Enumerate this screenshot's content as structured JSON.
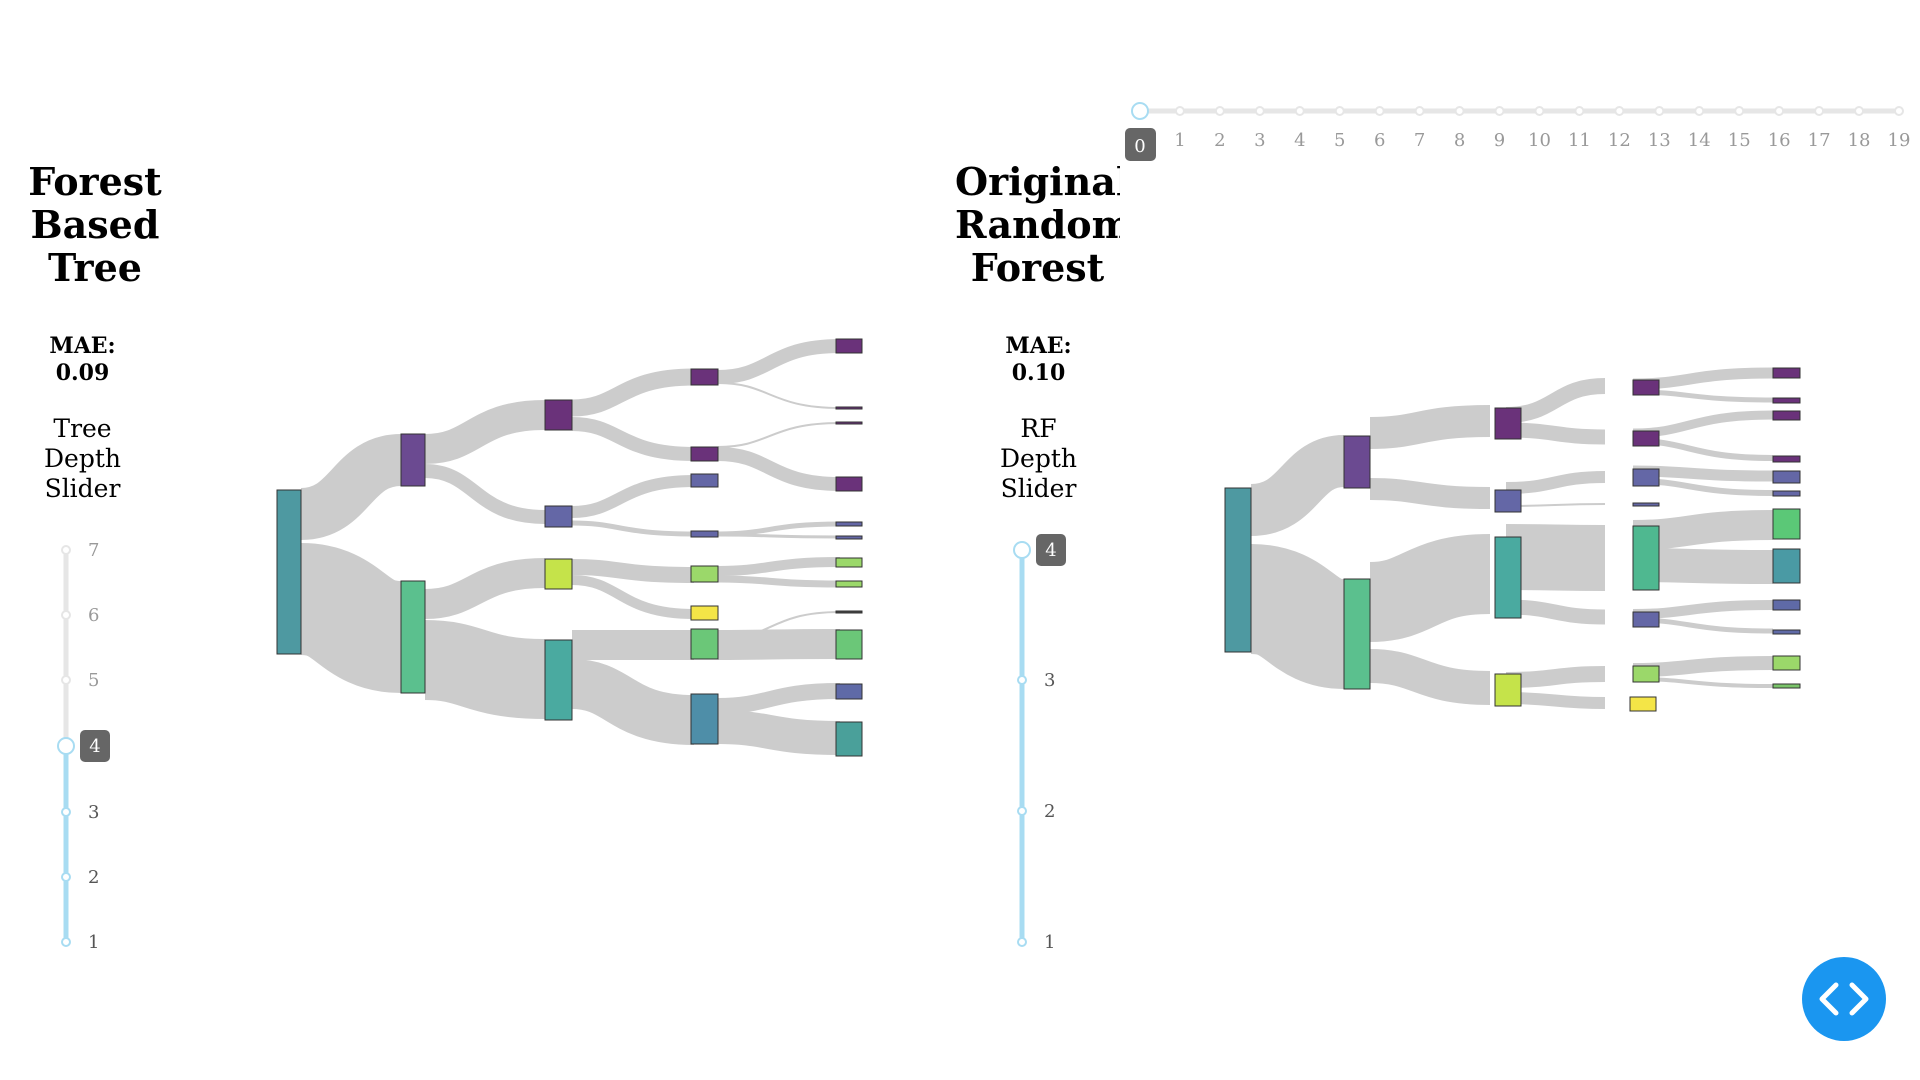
{
  "left_panel": {
    "title": "Forest\nBased\nTree",
    "mae": "MAE:\n0.09",
    "slider_label": "Tree\nDepth\nSlider",
    "slider": {
      "ticks": [
        "1",
        "2",
        "3",
        "4",
        "5",
        "6",
        "7"
      ],
      "value": "4",
      "min": 1,
      "max": 7
    }
  },
  "right_panel": {
    "title": "Original\nRandom\nForest",
    "mae": "MAE:\n0.10",
    "slider_label": "RF\nDepth\nSlider",
    "slider": {
      "ticks": [
        "1",
        "2",
        "3",
        "4"
      ],
      "value": "4",
      "min": 1,
      "max": 4
    }
  },
  "top_slider": {
    "ticks": [
      "0",
      "1",
      "2",
      "3",
      "4",
      "5",
      "6",
      "7",
      "8",
      "9",
      "10",
      "11",
      "12",
      "13",
      "14",
      "15",
      "16",
      "17",
      "18",
      "19"
    ],
    "value": "0"
  },
  "code_button": {
    "icon": "code-icon"
  },
  "colors": {
    "slider_active": "#a8dcf2",
    "slider_inactive": "#e6e6e6",
    "badge": "#666666",
    "link": "#cccccc",
    "code_button": "#1a96f0"
  }
}
